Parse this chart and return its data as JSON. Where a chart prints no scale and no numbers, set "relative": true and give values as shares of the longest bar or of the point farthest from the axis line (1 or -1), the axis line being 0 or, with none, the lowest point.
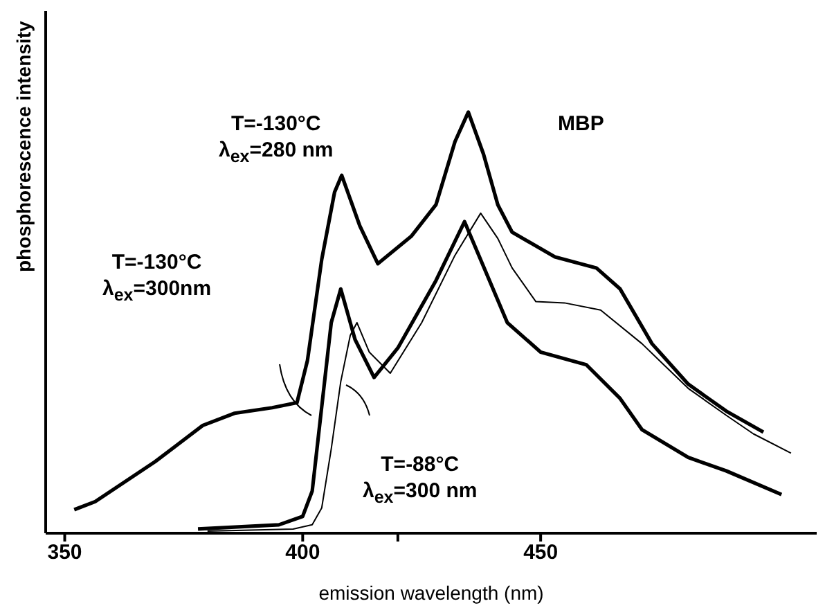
{
  "chart_data": {
    "type": "line",
    "relative": true,
    "xlabel": "emission wavelength  (nm)",
    "ylabel": "phosphorescence  intensity",
    "xlim": [
      346,
      508
    ],
    "xticks": [
      350,
      400,
      {
        "value": 420,
        "label": null
      },
      450
    ],
    "tick_labels": "x",
    "marker": "none",
    "line_style": "solid",
    "annotations": [
      "T=-130°C\nλ$_{ex}$=280 nm",
      "T=-130°C\nλ$_{ex}$=300nm",
      "T=-88°C\nλ$_{ex}$=300 nm",
      "MBP"
    ],
    "series": [
      {
        "color": "#000000",
        "x": [
          352,
          356.4,
          369,
          379,
          385.7,
          393.6,
          398.8,
          401,
          404,
          406.7,
          408.2,
          412,
          415.8,
          422.8,
          428,
          432,
          434.8,
          438,
          441,
          444,
          453,
          461.7,
          466.7,
          473.4,
          481,
          489,
          496.8
        ],
        "values": [
          0.056,
          0.075,
          0.17,
          0.256,
          0.285,
          0.298,
          0.31,
          0.41,
          0.65,
          0.81,
          0.85,
          0.73,
          0.64,
          0.705,
          0.78,
          0.93,
          1.0,
          0.9,
          0.78,
          0.715,
          0.656,
          0.63,
          0.58,
          0.45,
          0.354,
          0.29,
          0.24
        ]
      },
      {
        "color": "#000000",
        "x": [
          378,
          395,
          400,
          402,
          404,
          406,
          408,
          411,
          415,
          420,
          428,
          434,
          443,
          450,
          459.6,
          466.7,
          471.3,
          481,
          489,
          500.6
        ],
        "values": [
          0.01,
          0.02,
          0.04,
          0.1,
          0.3,
          0.5,
          0.58,
          0.46,
          0.37,
          0.44,
          0.6,
          0.74,
          0.5,
          0.43,
          0.4,
          0.32,
          0.246,
          0.18,
          0.148,
          0.092
        ]
      },
      {
        "color": "#000000",
        "x": [
          380,
          398,
          402,
          404,
          406,
          408,
          410,
          411.4,
          414,
          418.4,
          425,
          432,
          437.4,
          441,
          444,
          449,
          455,
          462.6,
          471.3,
          481,
          489,
          494.7,
          502.6
        ],
        "values": [
          0.005,
          0.01,
          0.02,
          0.06,
          0.2,
          0.36,
          0.47,
          0.5,
          0.43,
          0.38,
          0.5,
          0.66,
          0.76,
          0.7,
          0.63,
          0.55,
          0.547,
          0.53,
          0.45,
          0.344,
          0.28,
          0.236,
          0.19
        ]
      }
    ]
  }
}
